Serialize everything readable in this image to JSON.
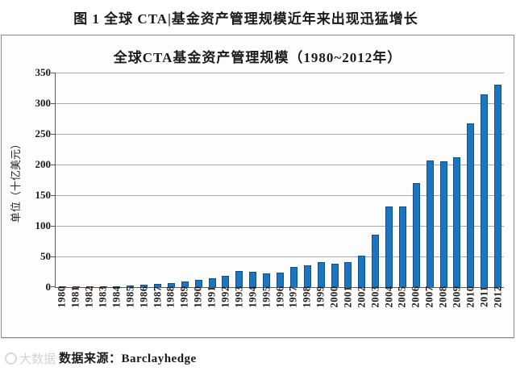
{
  "page": {
    "figure_title": "图 1 全球 CTA|基金资产管理规模近年来出现迅猛增长",
    "source_label": "数据来源：Barclayhedge",
    "watermark_text": "大数据"
  },
  "chart_data": {
    "type": "bar",
    "title": "全球CTA基金资产管理规模（1980~2012年）",
    "xlabel": "",
    "ylabel": "单位（十亿美元）",
    "ylim": [
      0,
      350
    ],
    "ytick_step": 50,
    "grid": true,
    "legend": "none",
    "bar_color": "#1b76bf",
    "bar_border_color": "#0f4f8a",
    "categories": [
      "1980",
      "1981",
      "1982",
      "1983",
      "1984",
      "1985",
      "1986",
      "1987",
      "1988",
      "1989",
      "1990",
      "1991",
      "1992",
      "1993",
      "1994",
      "1995",
      "1996",
      "1997",
      "1998",
      "1999",
      "2000",
      "2001",
      "2002",
      "2003",
      "2004",
      "2005",
      "2006",
      "2007",
      "2008",
      "2009",
      "2010",
      "2011",
      "2012"
    ],
    "values": [
      0.3,
      0.5,
      0.8,
      1.2,
      1.9,
      2.5,
      3.5,
      5,
      7,
      9,
      12,
      15,
      19,
      26,
      25,
      23,
      24,
      33,
      36,
      41,
      38,
      41,
      51,
      86,
      132,
      131,
      170,
      206,
      205,
      212,
      267,
      314,
      330
    ]
  }
}
